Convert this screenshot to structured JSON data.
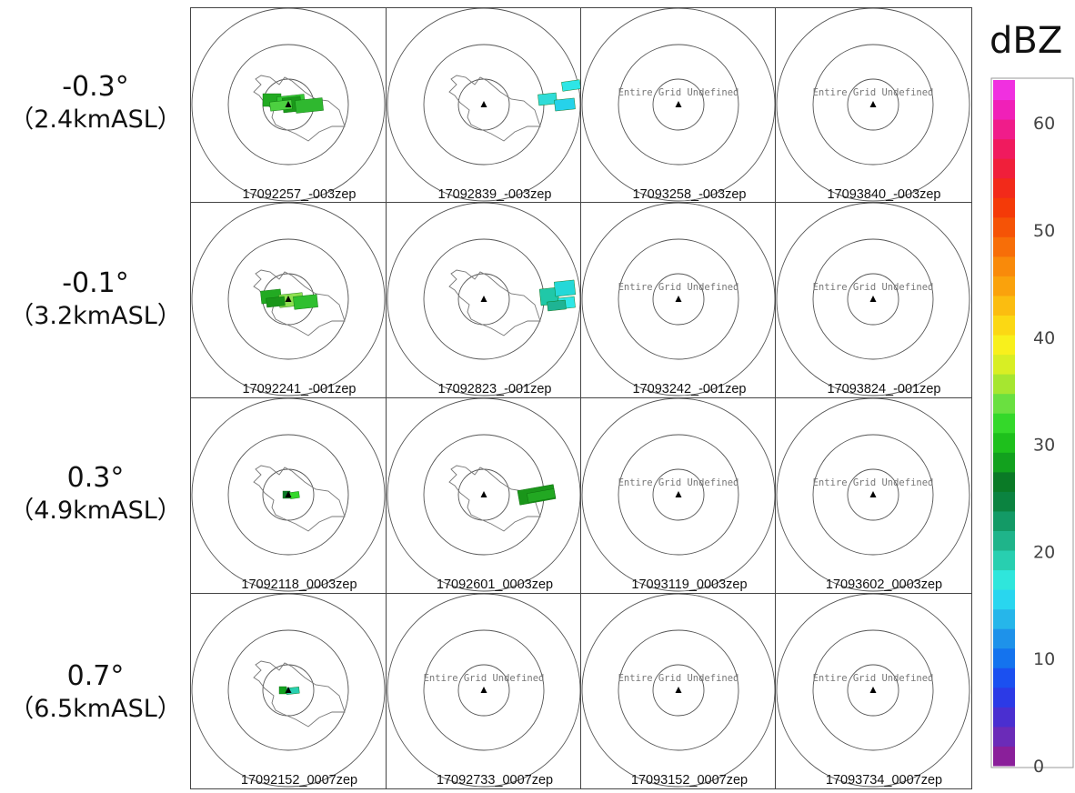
{
  "colorbar": {
    "unit": "dBZ",
    "ticks": [
      "0",
      "10",
      "20",
      "30",
      "40",
      "50",
      "60"
    ],
    "colors": [
      "#8a1f9a",
      "#6b2bb8",
      "#4a2fd0",
      "#2c3ae6",
      "#1b50f0",
      "#1473ee",
      "#1e92ea",
      "#26b6ea",
      "#29d6ef",
      "#2fe6dc",
      "#28cfb0",
      "#1fb48a",
      "#139a66",
      "#0b8340",
      "#0a7a26",
      "#12a11e",
      "#1ec01c",
      "#34d82a",
      "#6ae040",
      "#a6e630",
      "#d8ee24",
      "#f8f01c",
      "#fbd814",
      "#fbbd10",
      "#faa20c",
      "#f98a0a",
      "#f76e08",
      "#f55306",
      "#f43a08",
      "#f22a1a",
      "#f01f3a",
      "#f01a5e",
      "#f01c8a",
      "#f020b8",
      "#f030e0"
    ]
  },
  "rows": [
    {
      "angle": "-0.3°",
      "alt": "（2.4kmASL）"
    },
    {
      "angle": "-0.1°",
      "alt": "（3.2kmASL）"
    },
    {
      "angle": "0.3°",
      "alt": "（4.9kmASL）"
    },
    {
      "angle": "0.7°",
      "alt": "（6.5kmASL）"
    }
  ],
  "undefined_label": "Entire Grid Undefined",
  "panels": [
    [
      {
        "caption": "17092257_-003zep",
        "undefined": false
      },
      {
        "caption": "17092839_-003zep",
        "undefined": false
      },
      {
        "caption": "17093258_-003zep",
        "undefined": true
      },
      {
        "caption": "17093840_-003zep",
        "undefined": true
      }
    ],
    [
      {
        "caption": "17092241_-001zep",
        "undefined": false
      },
      {
        "caption": "17092823_-001zep",
        "undefined": false
      },
      {
        "caption": "17093242_-001zep",
        "undefined": true
      },
      {
        "caption": "17093824_-001zep",
        "undefined": true
      }
    ],
    [
      {
        "caption": "17092118_0003zep",
        "undefined": false
      },
      {
        "caption": "17092601_0003zep",
        "undefined": false
      },
      {
        "caption": "17093119_0003zep",
        "undefined": true
      },
      {
        "caption": "17093602_0003zep",
        "undefined": true
      }
    ],
    [
      {
        "caption": "17092152_0007zep",
        "undefined": false
      },
      {
        "caption": "17092733_0007zep",
        "undefined": true
      },
      {
        "caption": "17093152_0007zep",
        "undefined": true
      },
      {
        "caption": "17093734_0007zep",
        "undefined": true
      }
    ]
  ]
}
